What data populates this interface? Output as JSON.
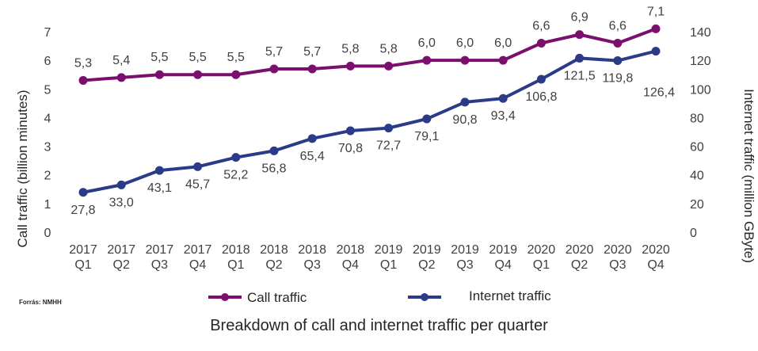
{
  "chart_data": {
    "type": "line",
    "categories": [
      [
        "2017",
        "Q1"
      ],
      [
        "2017",
        "Q2"
      ],
      [
        "2017",
        "Q3"
      ],
      [
        "2017",
        "Q4"
      ],
      [
        "2018",
        "Q1"
      ],
      [
        "2018",
        "Q2"
      ],
      [
        "2018",
        "Q3"
      ],
      [
        "2018",
        "Q4"
      ],
      [
        "2019",
        "Q1"
      ],
      [
        "2019",
        "Q2"
      ],
      [
        "2019",
        "Q3"
      ],
      [
        "2019",
        "Q4"
      ],
      [
        "2020",
        "Q1"
      ],
      [
        "2020",
        "Q2"
      ],
      [
        "2020",
        "Q3"
      ],
      [
        "2020",
        "Q4"
      ]
    ],
    "series": [
      {
        "name": "Call traffic",
        "axis": "left",
        "color": "#7b0f6e",
        "values": [
          5.3,
          5.4,
          5.5,
          5.5,
          5.5,
          5.7,
          5.7,
          5.8,
          5.8,
          6.0,
          6.0,
          6.0,
          6.6,
          6.9,
          6.6,
          7.1
        ],
        "labels": [
          "5,3",
          "5,4",
          "5,5",
          "5,5",
          "5,5",
          "5,7",
          "5,7",
          "5,8",
          "5,8",
          "6,0",
          "6,0",
          "6,0",
          "6,6",
          "6,9",
          "6,6",
          "7,1"
        ]
      },
      {
        "name": "Internet traffic",
        "axis": "right",
        "color": "#2b3b88",
        "values": [
          27.8,
          33.0,
          43.1,
          45.7,
          52.2,
          56.8,
          65.4,
          70.8,
          72.7,
          79.1,
          90.8,
          93.4,
          106.8,
          121.5,
          119.8,
          126.4
        ],
        "labels": [
          "27,8",
          "33,0",
          "43,1",
          "45,7",
          "52,2",
          "56,8",
          "65,4",
          "70,8",
          "72,7",
          "79,1",
          "90,8",
          "93,4",
          "106,8",
          "121,5",
          "119,8",
          "126,4"
        ]
      }
    ],
    "y_left": {
      "label": "Call traffic (billion minutes)",
      "ylim": [
        0,
        7
      ],
      "ticks": [
        "0",
        "1",
        "2",
        "3",
        "4",
        "5",
        "6",
        "7"
      ]
    },
    "y_right": {
      "label": "Internet traffic (million GByte)",
      "ylim": [
        0,
        140
      ],
      "ticks": [
        "0",
        "20",
        "40",
        "60",
        "80",
        "100",
        "120",
        "140"
      ]
    },
    "grid": false,
    "legend_placement": "bottom"
  },
  "source": "Forrás: NMHH",
  "caption": "Breakdown of call and internet traffic per quarter"
}
